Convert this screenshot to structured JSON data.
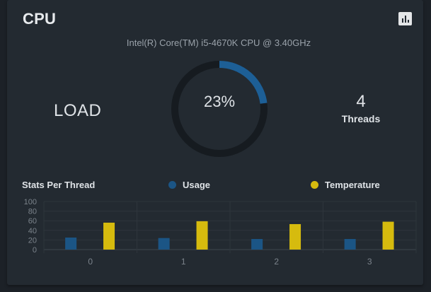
{
  "card": {
    "title": "CPU",
    "chart_button_icon": "bar-chart-icon"
  },
  "cpu": {
    "model": "Intel(R) Core(TM) i5-4670K CPU @ 3.40GHz",
    "load_label": "LOAD",
    "load_value": "23%",
    "load_fraction": 0.23,
    "threads_count": "4",
    "threads_label": "Threads"
  },
  "stats": {
    "title": "Stats Per Thread",
    "legend_usage": "Usage",
    "legend_temperature": "Temperature"
  },
  "colors": {
    "usage": "#1b5585",
    "temperature": "#d6bb0e",
    "gauge_track": "#161b20",
    "gauge_fill": "#1d5f96"
  },
  "chart_data": {
    "type": "bar",
    "categories": [
      "0",
      "1",
      "2",
      "3"
    ],
    "series": [
      {
        "name": "Usage",
        "values": [
          25,
          24,
          22,
          22
        ]
      },
      {
        "name": "Temperature",
        "values": [
          56,
          59,
          53,
          58
        ]
      }
    ],
    "yticks": [
      "0",
      "20",
      "40",
      "60",
      "80",
      "100"
    ],
    "ylim": [
      0,
      100
    ],
    "grid": true,
    "legend": "top"
  }
}
